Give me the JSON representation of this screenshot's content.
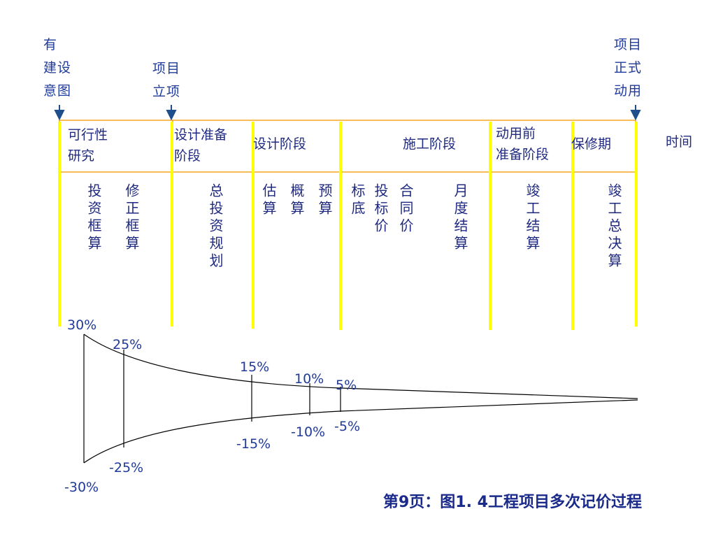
{
  "markers": {
    "intent": {
      "lines": [
        "有",
        "建设",
        "意图"
      ]
    },
    "approval": {
      "lines": [
        "项目",
        "立项"
      ]
    },
    "operation": {
      "lines": [
        "项目",
        "正式",
        "动用"
      ]
    }
  },
  "phases": {
    "feasibility": {
      "lines": [
        "可行性",
        "研究"
      ]
    },
    "design_prep": {
      "lines": [
        "设计准备",
        "阶段"
      ]
    },
    "design": {
      "label": "设计阶段"
    },
    "construction": {
      "label": "施工阶段"
    },
    "pre_operation": {
      "lines": [
        "动用前",
        "准备阶段"
      ]
    },
    "warranty": {
      "label": "保修期"
    },
    "time": {
      "label": "时间"
    }
  },
  "estimates": {
    "investment_estimate": "投资框算",
    "revised_estimate": "修正框算",
    "total_plan": "总投资规划",
    "rough_estimate": "估算",
    "budget_estimate": "概算",
    "budget": "预算",
    "bid_base": "标底",
    "bid_price": "投标价",
    "contract_price": "合同价",
    "monthly_settlement": "月度结算",
    "completion_settlement": "竣工结算",
    "final_account": "竣工总决算"
  },
  "accuracy": {
    "p30": "30%",
    "p25": "25%",
    "p15": "15%",
    "p10": "10%",
    "p5": "5%",
    "m30": "-30%",
    "m25": "-25%",
    "m15": "-15%",
    "m10": "-10%",
    "m5": "-5%"
  },
  "caption": "第9页：图1. 4工程项目多次记价过程",
  "colors": {
    "yellow_line": "#ffff00",
    "orange_border": "#f5a623",
    "arrow": "#1f4e8c",
    "text": "#1f2a80"
  }
}
